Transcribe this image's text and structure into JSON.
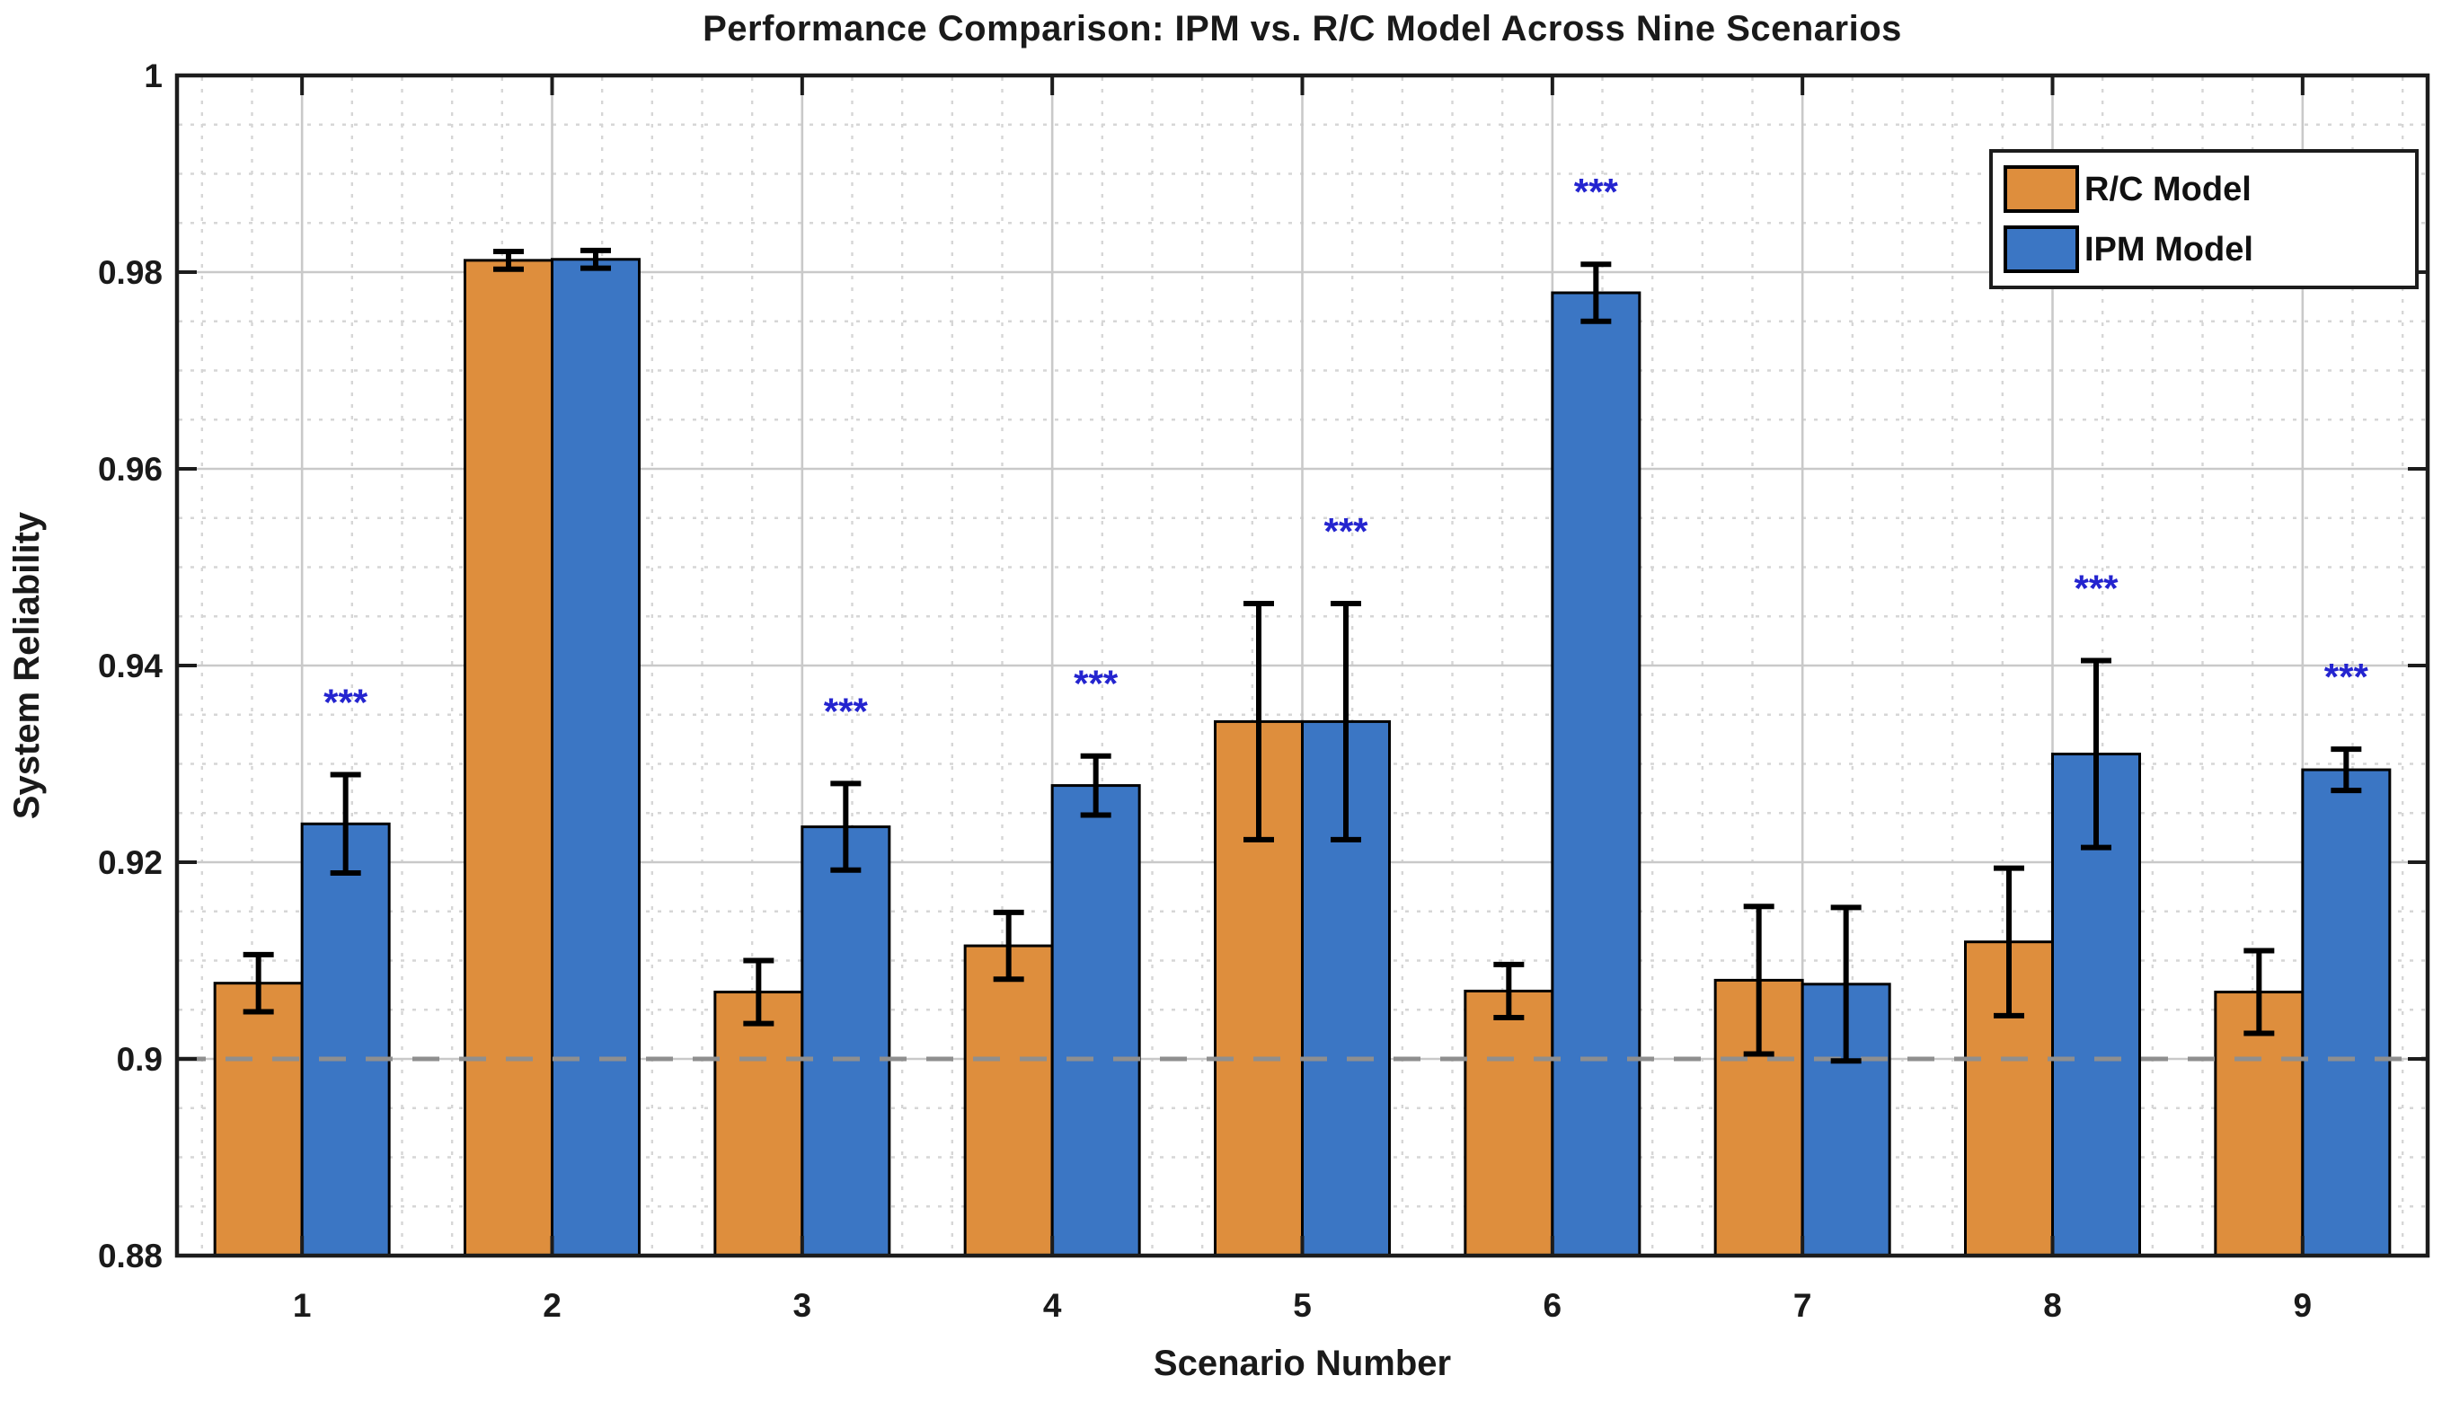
{
  "figure": {
    "title": "Performance Comparison: IPM vs. R/C Model Across Nine Scenarios",
    "xlabel": "Scenario Number",
    "ylabel": "System Reliability"
  },
  "legend": {
    "items": [
      {
        "label": "R/C Model",
        "color": "#DE8E3D"
      },
      {
        "label": "IPM Model",
        "color": "#3B76C4"
      }
    ]
  },
  "chart_data": {
    "type": "bar",
    "title": "Performance Comparison: IPM vs. R/C Model Across Nine Scenarios",
    "xlabel": "Scenario Number",
    "ylabel": "System Reliability",
    "categories": [
      "1",
      "2",
      "3",
      "4",
      "5",
      "6",
      "7",
      "8",
      "9"
    ],
    "series": [
      {
        "name": "R/C Model",
        "color": "#DE8E3D",
        "values": [
          0.9077,
          0.9812,
          0.9068,
          0.9115,
          0.9343,
          0.9069,
          0.908,
          0.9119,
          0.9068
        ],
        "errors": [
          0.0029,
          0.0009,
          0.0032,
          0.0034,
          0.012,
          0.0027,
          0.0075,
          0.0075,
          0.0042
        ]
      },
      {
        "name": "IPM Model",
        "color": "#3B76C4",
        "values": [
          0.9239,
          0.9813,
          0.9236,
          0.9278,
          0.9343,
          0.9779,
          0.9076,
          0.931,
          0.9294
        ],
        "errors": [
          0.005,
          0.0009,
          0.0044,
          0.003,
          0.012,
          0.0029,
          0.0078,
          0.0095,
          0.0021
        ]
      }
    ],
    "significance": {
      "label": "***",
      "color": "#2424CF",
      "scenarios": [
        1,
        3,
        4,
        5,
        6,
        8,
        9
      ]
    },
    "reference_line": {
      "y": 0.9,
      "style": "dashed",
      "color": "#8F8F8F"
    },
    "ylim": [
      0.88,
      1.0
    ],
    "ytick_step": 0.02,
    "yminor_step": 0.005,
    "ytick_labels": [
      "0.88",
      "0.9",
      "0.92",
      "0.94",
      "0.96",
      "0.98",
      "1"
    ],
    "grid": true,
    "legend_position": "top-right"
  }
}
